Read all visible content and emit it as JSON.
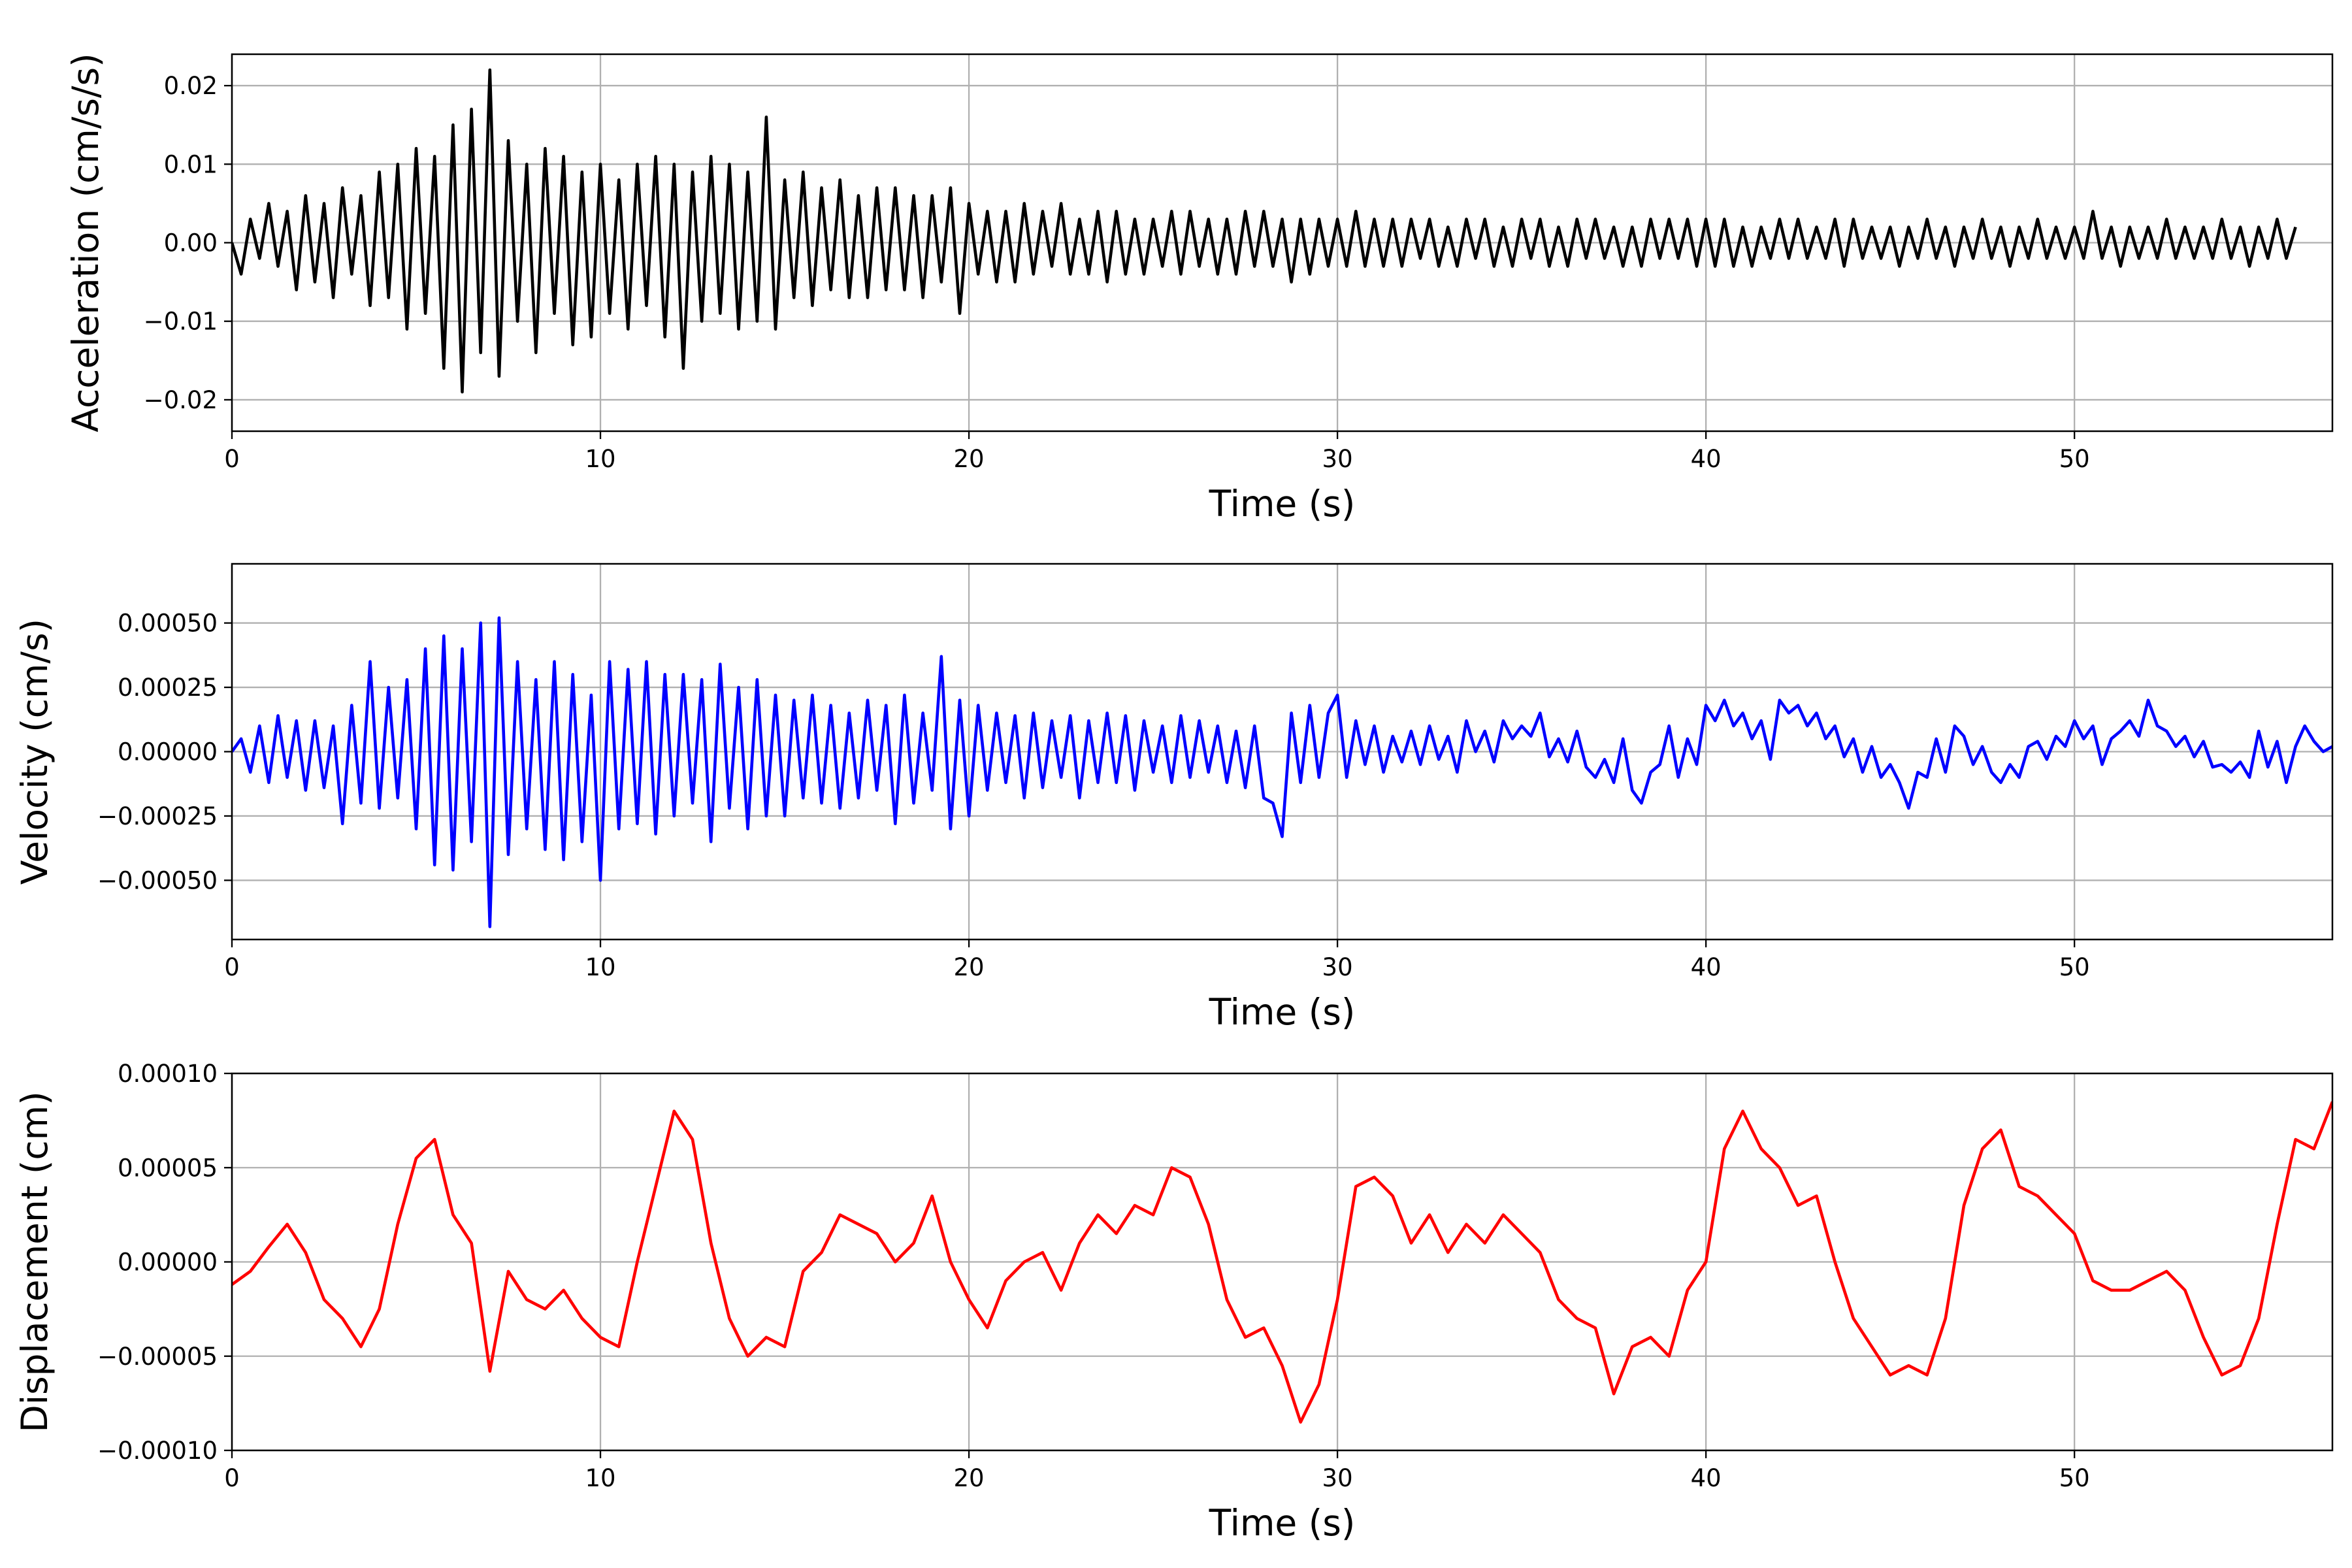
{
  "chart_data": [
    {
      "type": "line",
      "title": "",
      "xlabel": "Time (s)",
      "ylabel": "Acceleration (cm/s/s)",
      "xlim": [
        0,
        57
      ],
      "ylim": [
        -0.024,
        0.024
      ],
      "grid": true,
      "color": "#000000",
      "xticks": [
        0,
        10,
        20,
        30,
        40,
        50
      ],
      "xtick_labels": [
        "0",
        "10",
        "20",
        "30",
        "40",
        "50"
      ],
      "yticks": [
        -0.02,
        -0.01,
        0,
        0.01,
        0.02
      ],
      "ytick_labels": [
        "−0.02",
        "−0.01",
        "0.00",
        "0.01",
        "0.02"
      ],
      "x_start": 0,
      "dt": 0.25,
      "value_scale": 0.001,
      "values": [
        0,
        -4,
        3,
        -2,
        5,
        -3,
        4,
        -6,
        6,
        -5,
        5,
        -7,
        7,
        -4,
        6,
        -8,
        9,
        -7,
        10,
        -11,
        12,
        -9,
        11,
        -16,
        15,
        -19,
        17,
        -14,
        22,
        -17,
        13,
        -10,
        10,
        -14,
        12,
        -9,
        11,
        -13,
        9,
        -12,
        10,
        -9,
        8,
        -11,
        10,
        -8,
        11,
        -12,
        10,
        -16,
        9,
        -10,
        11,
        -9,
        10,
        -11,
        9,
        -10,
        16,
        -11,
        8,
        -7,
        9,
        -8,
        7,
        -6,
        8,
        -7,
        6,
        -7,
        7,
        -6,
        7,
        -6,
        6,
        -7,
        6,
        -5,
        7,
        -9,
        5,
        -4,
        4,
        -5,
        4,
        -5,
        5,
        -4,
        4,
        -3,
        5,
        -4,
        3,
        -4,
        4,
        -5,
        4,
        -4,
        3,
        -4,
        3,
        -3,
        4,
        -4,
        4,
        -3,
        3,
        -4,
        3,
        -4,
        4,
        -3,
        4,
        -3,
        3,
        -5,
        3,
        -4,
        3,
        -3,
        3,
        -3,
        4,
        -3,
        3,
        -3,
        3,
        -3,
        3,
        -2,
        3,
        -3,
        2,
        -3,
        3,
        -2,
        3,
        -3,
        2,
        -3,
        3,
        -2,
        3,
        -3,
        2,
        -3,
        3,
        -2,
        3,
        -2,
        2,
        -3,
        2,
        -3,
        3,
        -2,
        3,
        -2,
        3,
        -3,
        3,
        -3,
        3,
        -3,
        2,
        -3,
        2,
        -2,
        3,
        -2,
        3,
        -2,
        2,
        -2,
        3,
        -3,
        3,
        -2,
        2,
        -2,
        2,
        -3,
        2,
        -2,
        3,
        -2,
        2,
        -3,
        2,
        -2,
        3,
        -2,
        2,
        -3,
        2,
        -2,
        3,
        -2,
        2,
        -2,
        2,
        -2,
        4,
        -2,
        2,
        -3,
        2,
        -2,
        2,
        -2,
        3,
        -2,
        2,
        -2,
        2,
        -2,
        3,
        -2,
        2,
        -3,
        2,
        -2,
        3,
        -2,
        2
      ]
    },
    {
      "type": "line",
      "title": "",
      "xlabel": "Time (s)",
      "ylabel": "Velocity (cm/s)",
      "xlim": [
        0,
        57
      ],
      "ylim": [
        -0.00073,
        0.00073
      ],
      "grid": true,
      "color": "#0000ff",
      "xticks": [
        0,
        10,
        20,
        30,
        40,
        50
      ],
      "xtick_labels": [
        "0",
        "10",
        "20",
        "30",
        "40",
        "50"
      ],
      "yticks": [
        -0.0005,
        -0.00025,
        0,
        0.00025,
        0.0005
      ],
      "ytick_labels": [
        "−0.00050",
        "−0.00025",
        "0.00000",
        "0.00025",
        "0.00050"
      ],
      "x_start": 0,
      "dt": 0.25,
      "value_scale": 1e-05,
      "values": [
        0,
        5,
        -8,
        10,
        -12,
        14,
        -10,
        12,
        -15,
        12,
        -14,
        10,
        -28,
        18,
        -20,
        35,
        -22,
        25,
        -18,
        28,
        -30,
        40,
        -44,
        45,
        -46,
        40,
        -35,
        50,
        -68,
        52,
        -40,
        35,
        -30,
        28,
        -38,
        35,
        -42,
        30,
        -35,
        22,
        -50,
        35,
        -30,
        32,
        -28,
        35,
        -32,
        30,
        -25,
        30,
        -20,
        28,
        -35,
        34,
        -22,
        25,
        -30,
        28,
        -25,
        22,
        -25,
        20,
        -18,
        22,
        -20,
        18,
        -22,
        15,
        -18,
        20,
        -15,
        18,
        -28,
        22,
        -20,
        15,
        -15,
        37,
        -30,
        20,
        -25,
        18,
        -15,
        15,
        -12,
        14,
        -18,
        15,
        -14,
        12,
        -10,
        14,
        -18,
        12,
        -12,
        15,
        -12,
        14,
        -15,
        12,
        -8,
        10,
        -12,
        14,
        -10,
        12,
        -8,
        10,
        -12,
        8,
        -14,
        10,
        -18,
        -20,
        -33,
        15,
        -12,
        18,
        -10,
        15,
        22,
        -10,
        12,
        -5,
        10,
        -8,
        6,
        -4,
        8,
        -5,
        10,
        -3,
        6,
        -8,
        12,
        0,
        8,
        -4,
        12,
        5,
        10,
        6,
        15,
        -2,
        5,
        -4,
        8,
        -6,
        -10,
        -3,
        -12,
        5,
        -15,
        -20,
        -8,
        -5,
        10,
        -10,
        5,
        -5,
        18,
        12,
        20,
        10,
        15,
        5,
        12,
        -3,
        20,
        15,
        18,
        10,
        15,
        5,
        10,
        -2,
        5,
        -8,
        2,
        -10,
        -5,
        -12,
        -22,
        -8,
        -10,
        5,
        -8,
        10,
        6,
        -5,
        2,
        -8,
        -12,
        -5,
        -10,
        2,
        4,
        -3,
        6,
        2,
        12,
        5,
        10,
        -5,
        5,
        8,
        12,
        6,
        20,
        10,
        8,
        2,
        6,
        -2,
        4,
        -6,
        -5,
        -8,
        -4,
        -10,
        8,
        -6,
        4,
        -12,
        2,
        10,
        4,
        0,
        2
      ]
    },
    {
      "type": "line",
      "title": "",
      "xlabel": "Time (s)",
      "ylabel": "Displacement (cm)",
      "xlim": [
        0,
        57
      ],
      "ylim": [
        -0.0001,
        0.0001
      ],
      "grid": true,
      "color": "#ff0000",
      "xticks": [
        0,
        10,
        20,
        30,
        40,
        50
      ],
      "xtick_labels": [
        "0",
        "10",
        "20",
        "30",
        "40",
        "50"
      ],
      "yticks": [
        -0.0001,
        -5e-05,
        0,
        5e-05,
        0.0001
      ],
      "ytick_labels": [
        "−0.00010",
        "−0.00005",
        "0.00000",
        "0.00005",
        "0.00010"
      ],
      "x_start": 0,
      "dt": 0.5,
      "value_scale": 1e-06,
      "values": [
        -12,
        -5,
        8,
        20,
        5,
        -20,
        -30,
        -45,
        -25,
        20,
        55,
        65,
        25,
        10,
        -58,
        -5,
        -20,
        -25,
        -15,
        -30,
        -40,
        -45,
        0,
        40,
        80,
        65,
        10,
        -30,
        -50,
        -40,
        -45,
        -5,
        5,
        25,
        20,
        15,
        0,
        10,
        35,
        0,
        -20,
        -35,
        -10,
        0,
        5,
        -15,
        10,
        25,
        15,
        30,
        25,
        50,
        45,
        20,
        -20,
        -40,
        -35,
        -55,
        -85,
        -65,
        -20,
        40,
        45,
        35,
        10,
        25,
        5,
        20,
        10,
        25,
        15,
        5,
        -20,
        -30,
        -35,
        -70,
        -45,
        -40,
        -50,
        -15,
        0,
        60,
        80,
        60,
        50,
        30,
        35,
        0,
        -30,
        -45,
        -60,
        -55,
        -60,
        -30,
        30,
        60,
        70,
        40,
        35,
        25,
        15,
        -10,
        -15,
        -15,
        -10,
        -5,
        -15,
        -40,
        -60,
        -55,
        -30,
        20,
        65,
        60,
        85
      ]
    }
  ]
}
